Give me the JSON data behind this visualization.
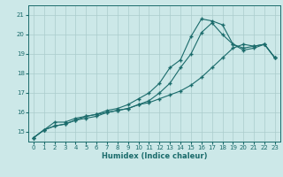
{
  "xlabel": "Humidex (Indice chaleur)",
  "bg_color": "#cce8e8",
  "grid_color": "#aacccc",
  "line_color": "#1a6b6b",
  "xlim": [
    -0.5,
    23.5
  ],
  "ylim": [
    14.5,
    21.5
  ],
  "yticks": [
    15,
    16,
    17,
    18,
    19,
    20,
    21
  ],
  "xticks": [
    0,
    1,
    2,
    3,
    4,
    5,
    6,
    7,
    8,
    9,
    10,
    11,
    12,
    13,
    14,
    15,
    16,
    17,
    18,
    19,
    20,
    21,
    22,
    23
  ],
  "line1_x": [
    0,
    1,
    2,
    3,
    4,
    5,
    6,
    7,
    8,
    9,
    10,
    11,
    12,
    13,
    14,
    15,
    16,
    17,
    18,
    19,
    20,
    21,
    22,
    23
  ],
  "line1_y": [
    14.7,
    15.1,
    15.5,
    15.5,
    15.7,
    15.8,
    15.9,
    16.0,
    16.1,
    16.2,
    16.4,
    16.5,
    16.7,
    16.9,
    17.1,
    17.4,
    17.8,
    18.3,
    18.8,
    19.3,
    19.5,
    19.4,
    19.5,
    18.8
  ],
  "line2_x": [
    0,
    1,
    2,
    3,
    4,
    5,
    6,
    7,
    8,
    9,
    10,
    11,
    12,
    13,
    14,
    15,
    16,
    17,
    18,
    19,
    20,
    21,
    22,
    23
  ],
  "line2_y": [
    14.7,
    15.1,
    15.3,
    15.4,
    15.6,
    15.7,
    15.8,
    16.0,
    16.1,
    16.2,
    16.4,
    16.6,
    17.0,
    17.5,
    18.3,
    19.0,
    20.1,
    20.6,
    20.0,
    19.5,
    19.2,
    19.3,
    19.5,
    18.8
  ],
  "line3_x": [
    0,
    1,
    2,
    3,
    4,
    5,
    6,
    7,
    8,
    9,
    10,
    11,
    12,
    13,
    14,
    15,
    16,
    17,
    18,
    19,
    20,
    21,
    22,
    23
  ],
  "line3_y": [
    14.7,
    15.1,
    15.3,
    15.4,
    15.6,
    15.8,
    15.9,
    16.1,
    16.2,
    16.4,
    16.7,
    17.0,
    17.5,
    18.3,
    18.7,
    19.9,
    20.8,
    20.7,
    20.5,
    19.5,
    19.3,
    19.4,
    19.5,
    18.8
  ],
  "marker": "+",
  "marker_size": 3,
  "linewidth": 0.8,
  "tick_fontsize": 5.0,
  "xlabel_fontsize": 6.0
}
